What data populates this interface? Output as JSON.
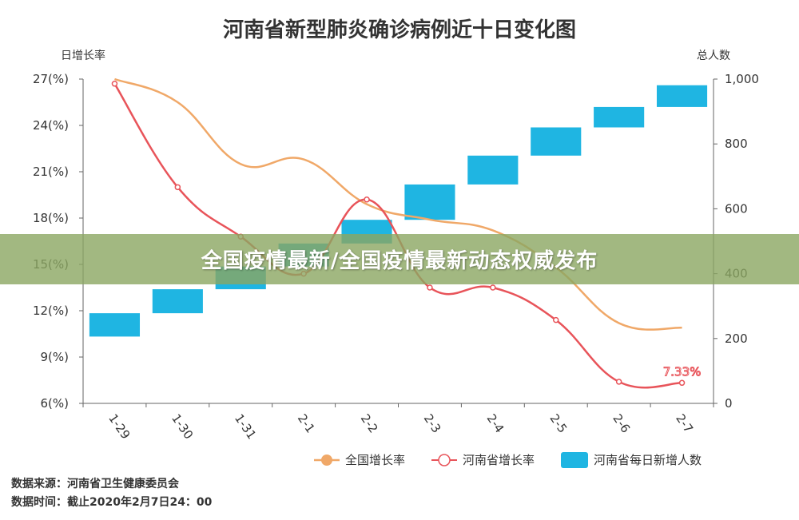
{
  "colors": {
    "national_line": "#f0a868",
    "henan_line": "#e8545a",
    "bars": "#1fb5e2",
    "axis": "#666666",
    "text": "#333333",
    "banner": "#8ba662",
    "banner_text": "#ffffff"
  },
  "banner": {
    "text": "全国疫情最新/全国疫情最新动态权威发布"
  },
  "source": {
    "line1": "数据来源：河南省卫生健康委员会",
    "line2": "数据时间：截止2020年2月7日24：00"
  },
  "chart_data": {
    "type": "bar+line",
    "title": "河南省新型肺炎确诊病例近十日变化图",
    "y_left_label": "日增长率",
    "y_right_label": "总人数",
    "categories": [
      "1-29",
      "1-30",
      "1-31",
      "2-1",
      "2-2",
      "2-3",
      "2-4",
      "2-5",
      "2-6",
      "2-7"
    ],
    "y_left": {
      "min": 6,
      "max": 27,
      "ticks": [
        6,
        9,
        12,
        15,
        18,
        21,
        24,
        27
      ],
      "tick_labels": [
        "6(%)",
        "9(%)",
        "12(%)",
        "15(%)",
        "18(%)",
        "21(%)",
        "24(%)",
        "27(%)"
      ]
    },
    "y_right": {
      "min": 0,
      "max": 1000,
      "ticks": [
        0,
        200,
        400,
        600,
        800,
        1000
      ],
      "tick_labels": [
        "0",
        "200",
        "400",
        "600",
        "800",
        "1,000"
      ]
    },
    "bars_series": {
      "name": "河南省每日新增人数",
      "low": [
        206,
        278,
        352,
        422,
        493,
        566,
        675,
        764,
        851,
        914
      ],
      "high": [
        278,
        352,
        422,
        493,
        566,
        675,
        764,
        851,
        914,
        981
      ]
    },
    "series": [
      {
        "name": "全国增长率",
        "values": [
          27.0,
          25.5,
          21.5,
          21.8,
          18.9,
          17.9,
          17.2,
          14.8,
          11.2,
          10.9
        ]
      },
      {
        "name": "河南省增长率",
        "values": [
          26.7,
          20.0,
          16.8,
          14.4,
          19.2,
          13.5,
          13.5,
          11.4,
          7.4,
          7.33
        ]
      }
    ],
    "annotation": {
      "text": "7.33%"
    },
    "legend": {
      "position": "bottom-right",
      "items": [
        "全国增长率",
        "河南省增长率",
        "河南省每日新增人数"
      ]
    }
  }
}
